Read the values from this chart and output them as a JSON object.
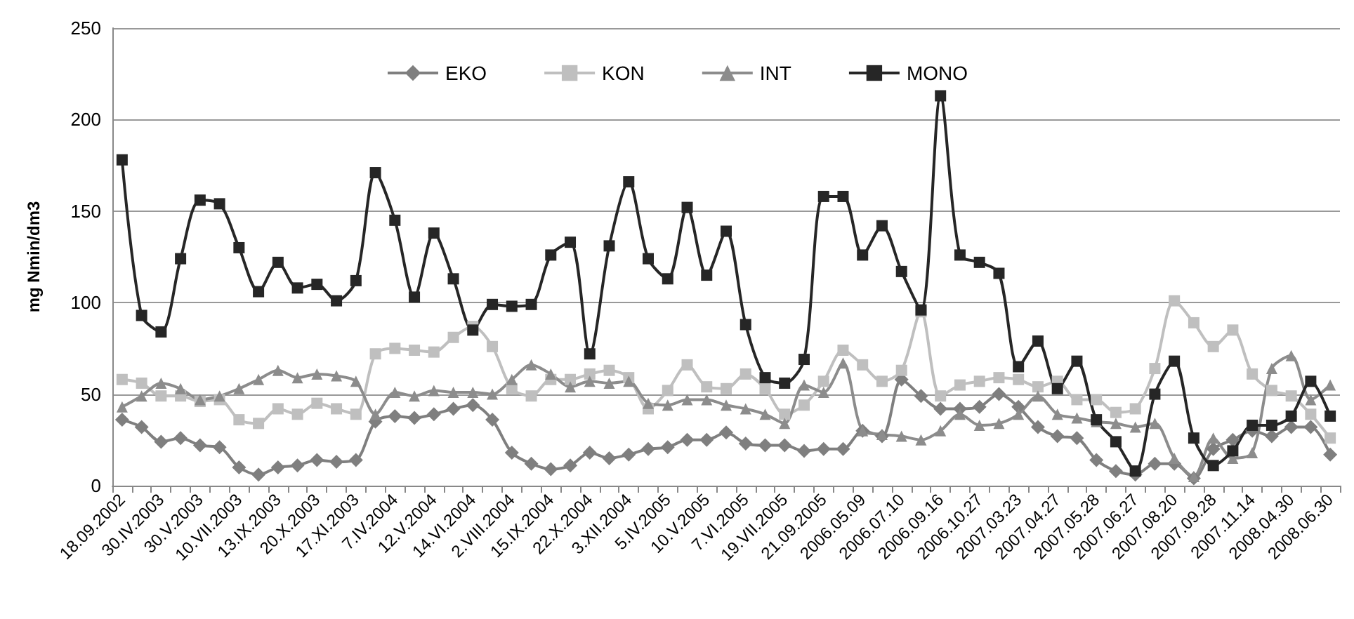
{
  "chart_data": {
    "type": "line",
    "ylabel": "mg Nmin/dm3",
    "categories": [
      "18.09.2002",
      null,
      "30.IV.2003",
      null,
      "30.V.2003",
      null,
      "10.VII.2003",
      null,
      "13.IX.2003",
      null,
      "20.X.2003",
      null,
      "17.XI.2003",
      null,
      "7.IV.2004",
      null,
      "12.V.2004",
      null,
      "14.VI.2004",
      null,
      "2.VIII.2004",
      null,
      "15.IX.2004",
      null,
      "22.X.2004",
      null,
      "3.XII.2004",
      null,
      "5.IV.2005",
      null,
      "10.V.2005",
      null,
      "7.VI.2005",
      null,
      "19.VII.2005",
      null,
      "21.09.2005",
      null,
      "2006.05.09",
      null,
      "2006.07.10",
      null,
      "2006.09.16",
      null,
      "2006.10.27",
      null,
      "2007.03.23",
      null,
      "2007.04.27",
      null,
      "2007.05.28",
      null,
      "2007.06.27",
      null,
      "2007.08.20",
      null,
      "2007.09.28",
      null,
      "2007.11.14",
      null,
      "2008.04.30",
      null,
      "2008.06.30"
    ],
    "series": [
      {
        "name": "EKO",
        "color": "#7f7f7f",
        "marker": "diamond",
        "values": [
          36,
          32,
          24,
          26,
          22,
          21,
          10,
          6,
          10,
          11,
          14,
          13,
          14,
          35,
          38,
          37,
          39,
          42,
          44,
          36,
          18,
          12,
          9,
          11,
          18,
          15,
          17,
          20,
          21,
          25,
          25,
          29,
          23,
          22,
          22,
          19,
          20,
          20,
          30,
          27,
          58,
          49,
          42,
          42,
          43,
          50,
          43,
          32,
          27,
          26,
          14,
          8,
          6,
          12,
          12,
          4,
          20,
          25,
          30,
          27,
          32,
          32,
          17
        ]
      },
      {
        "name": "KON",
        "color": "#bfbfbf",
        "marker": "square",
        "values": [
          58,
          56,
          49,
          49,
          46,
          47,
          36,
          34,
          42,
          39,
          45,
          42,
          39,
          72,
          75,
          74,
          73,
          81,
          87,
          76,
          53,
          49,
          58,
          58,
          61,
          63,
          59,
          42,
          52,
          66,
          54,
          53,
          61,
          53,
          39,
          44,
          57,
          74,
          66,
          57,
          63,
          95,
          49,
          55,
          57,
          59,
          58,
          54,
          57,
          47,
          47,
          40,
          42,
          64,
          101,
          89,
          76,
          85,
          61,
          52,
          49,
          39,
          26
        ]
      },
      {
        "name": "INT",
        "color": "#8c8c8c",
        "marker": "triangle",
        "values": [
          43,
          49,
          56,
          53,
          47,
          49,
          53,
          58,
          63,
          59,
          61,
          60,
          57,
          39,
          51,
          49,
          52,
          51,
          51,
          50,
          58,
          66,
          61,
          54,
          57,
          56,
          57,
          45,
          44,
          47,
          47,
          44,
          42,
          39,
          34,
          55,
          51,
          67,
          30,
          28,
          27,
          25,
          30,
          39,
          33,
          34,
          39,
          49,
          39,
          37,
          35,
          34,
          32,
          34,
          15,
          5,
          26,
          15,
          18,
          64,
          71,
          47,
          55
        ]
      },
      {
        "name": "MONO",
        "color": "#262626",
        "marker": "square",
        "values": [
          178,
          93,
          84,
          124,
          156,
          154,
          130,
          106,
          122,
          108,
          110,
          101,
          112,
          171,
          145,
          103,
          138,
          113,
          85,
          99,
          98,
          99,
          126,
          133,
          72,
          131,
          166,
          124,
          113,
          152,
          115,
          139,
          88,
          59,
          56,
          69,
          158,
          158,
          126,
          142,
          117,
          96,
          213,
          126,
          122,
          116,
          65,
          79,
          53,
          68,
          36,
          24,
          8,
          50,
          68,
          26,
          11,
          19,
          33,
          33,
          38,
          57,
          38
        ]
      }
    ],
    "ylim": [
      0,
      250
    ],
    "yticks": [
      0,
      50,
      100,
      150,
      200,
      250
    ],
    "grid": "y",
    "legend": "top"
  }
}
